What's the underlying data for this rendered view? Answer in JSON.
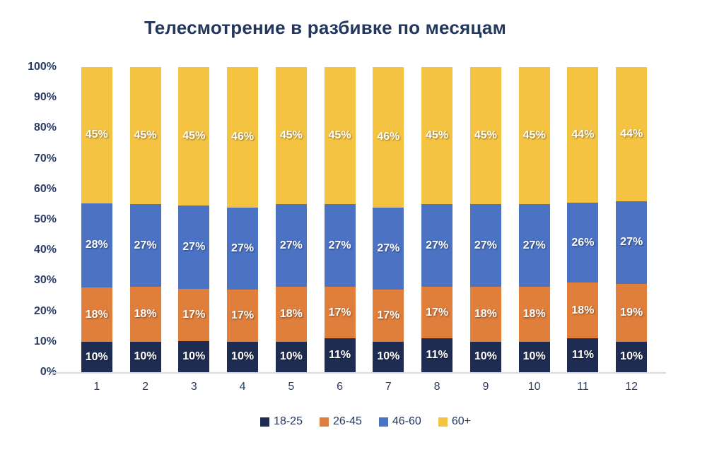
{
  "title": "Телесмотрение в разбивке по месяцам",
  "colors": {
    "title_text": "#22365e",
    "axis_text": "#2a3c66",
    "data_label_text": "#ffffff",
    "baseline": "#dcdcdc",
    "series_18_25": "#1f2c52",
    "series_26_45": "#e07e3b",
    "series_46_60": "#4c72c3",
    "series_60_plus": "#f5c342"
  },
  "chart_data": {
    "type": "bar",
    "stacked": true,
    "percent_stacked": true,
    "title": "Телесмотрение в разбивке по месяцам",
    "xlabel": "",
    "ylabel": "",
    "categories": [
      "1",
      "2",
      "3",
      "4",
      "5",
      "6",
      "7",
      "8",
      "9",
      "10",
      "11",
      "12"
    ],
    "series": [
      {
        "name": "18-25",
        "color": "#1f2c52",
        "values": [
          10,
          10,
          10,
          10,
          10,
          11,
          10,
          11,
          10,
          10,
          11,
          10
        ]
      },
      {
        "name": "26-45",
        "color": "#e07e3b",
        "values": [
          18,
          18,
          17,
          17,
          18,
          17,
          17,
          17,
          18,
          18,
          18,
          19
        ]
      },
      {
        "name": "46-60",
        "color": "#4c72c3",
        "values": [
          28,
          27,
          27,
          27,
          27,
          27,
          27,
          27,
          27,
          27,
          26,
          27
        ]
      },
      {
        "name": "60+",
        "color": "#f5c342",
        "values": [
          45,
          45,
          45,
          46,
          45,
          45,
          46,
          45,
          45,
          45,
          44,
          44
        ]
      }
    ],
    "data_label_suffix": "%",
    "y_ticks": [
      "0%",
      "10%",
      "20%",
      "30%",
      "40%",
      "50%",
      "60%",
      "70%",
      "80%",
      "90%",
      "100%"
    ],
    "ylim": [
      0,
      100
    ],
    "grid": false,
    "legend_position": "bottom"
  }
}
